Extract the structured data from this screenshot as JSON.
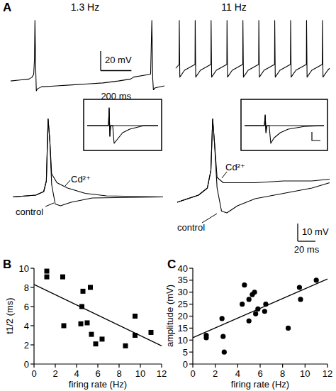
{
  "chart_data": [
    {
      "type": "line",
      "panel_label": "A",
      "title": "1.3 Hz",
      "tick_labels": false,
      "xlim": [
        0,
        1000
      ],
      "ylim": [
        -75,
        5
      ],
      "series": [
        {
          "color": "#000000",
          "x": [
            0,
            60,
            120,
            140,
            150,
            155,
            158,
            161,
            164,
            167,
            175,
            200,
            300,
            400,
            500,
            600,
            700,
            780,
            800,
            910,
            915,
            918,
            921,
            924,
            928,
            940,
            1000
          ],
          "values": [
            -62,
            -61,
            -60,
            -58,
            -55,
            -40,
            0,
            -30,
            -55,
            -72,
            -70,
            -68,
            -67,
            -66,
            -65,
            -64,
            -62,
            -60,
            -58,
            -55,
            -20,
            0,
            -30,
            -60,
            -71,
            -69,
            -67
          ]
        }
      ],
      "scale_bar": {
        "y_value": 20,
        "y_label": "20 mV",
        "x_value": 200,
        "x_label": "200 ms"
      }
    },
    {
      "type": "line",
      "title": "11 Hz",
      "tick_labels": false,
      "xlim": [
        0,
        880
      ],
      "ylim": [
        -75,
        5
      ],
      "series": [
        {
          "color": "#000000",
          "x": [
            0,
            19,
            20,
            23,
            50,
            90,
            110,
            111,
            114,
            141,
            181,
            201,
            202,
            205,
            232,
            272,
            292,
            293,
            296,
            323,
            363,
            383,
            384,
            387,
            414,
            454,
            474,
            475,
            478,
            505,
            545,
            565,
            566,
            569,
            596,
            636,
            656,
            657,
            660,
            687,
            727,
            747,
            748,
            751,
            778,
            818,
            838,
            839,
            842,
            869,
            880
          ],
          "values": [
            -49,
            -45,
            0,
            -58,
            -51,
            -47,
            -45,
            0,
            -58,
            -51,
            -47,
            -45,
            0,
            -58,
            -51,
            -47,
            -45,
            0,
            -58,
            -51,
            -47,
            -45,
            0,
            -58,
            -51,
            -47,
            -45,
            0,
            -58,
            -51,
            -47,
            -45,
            0,
            -58,
            -51,
            -47,
            -45,
            0,
            -58,
            -51,
            -47,
            -45,
            0,
            -58,
            -51,
            -47,
            -45,
            0,
            -58,
            -51,
            -49
          ]
        }
      ]
    },
    {
      "type": "line",
      "tick_labels": false,
      "xlim": [
        0,
        170
      ],
      "ylim": [
        -70,
        -10
      ],
      "series": [
        {
          "name": "control",
          "color": "#000000",
          "x": [
            0,
            26,
            35,
            38,
            40,
            42,
            44,
            48,
            54,
            66,
            90,
            170
          ],
          "values": [
            -57,
            -56,
            -54,
            -48,
            -13,
            -26,
            -50,
            -61,
            -62,
            -60,
            -57.6,
            -57
          ]
        },
        {
          "name": "Cd²⁺",
          "color": "#000000",
          "x": [
            0,
            26,
            35,
            38,
            40,
            42,
            44,
            50,
            62,
            82,
            106,
            170
          ],
          "values": [
            -57,
            -56,
            -54,
            -48,
            -13,
            -26,
            -44,
            -49,
            -52,
            -55,
            -56.4,
            -57
          ]
        }
      ]
    },
    {
      "type": "line",
      "tick_labels": false,
      "xlim": [
        0,
        172
      ],
      "ylim": [
        -70,
        -10
      ],
      "series": [
        {
          "name": "control",
          "color": "#000000",
          "x": [
            0,
            24,
            34,
            38,
            40,
            42,
            45,
            50,
            56,
            68,
            88,
            120,
            152,
            172
          ],
          "values": [
            -60,
            -56,
            -52,
            -42,
            -13,
            -26,
            -52,
            -65,
            -66,
            -62,
            -58,
            -55,
            -52,
            -49
          ]
        },
        {
          "name": "Cd²⁺",
          "color": "#000000",
          "x": [
            0,
            24,
            34,
            38,
            40,
            42,
            45,
            52,
            64,
            88,
            120,
            152,
            172
          ],
          "values": [
            -60,
            -56,
            -52,
            -42,
            -13,
            -26,
            -46,
            -49,
            -49,
            -49,
            -48,
            -48,
            -47
          ]
        }
      ],
      "scale_bar": {
        "y_value": 10,
        "y_label": "10 mV",
        "x_value": 20,
        "x_label": "20 ms"
      }
    },
    {
      "type": "line",
      "tick_labels": false,
      "xlim": [
        0,
        100
      ],
      "ylim": [
        -12,
        12
      ],
      "series": [
        {
          "color": "#000000",
          "x": [
            0,
            30,
            31,
            32,
            33,
            36,
            38,
            42,
            50,
            60,
            80,
            100
          ],
          "values": [
            0,
            0,
            10,
            -6,
            0,
            0,
            -10,
            -8,
            -4,
            -2,
            0,
            0
          ]
        },
        {
          "color": "#000000",
          "x": [
            0,
            30,
            31,
            32,
            33,
            100
          ],
          "values": [
            0,
            0,
            10,
            -6,
            0,
            0
          ]
        }
      ]
    },
    {
      "type": "line",
      "tick_labels": false,
      "xlim": [
        0,
        100
      ],
      "ylim": [
        -12,
        12
      ],
      "series": [
        {
          "color": "#000000",
          "x": [
            0,
            25,
            26,
            27,
            28,
            31,
            33,
            37,
            45,
            55,
            75,
            100
          ],
          "values": [
            0,
            0,
            6,
            -4,
            0,
            0,
            -10,
            -7,
            -4,
            -2,
            -0.5,
            0
          ]
        },
        {
          "color": "#000000",
          "x": [
            0,
            25,
            26,
            27,
            28,
            100
          ],
          "values": [
            0,
            0,
            6,
            -4,
            0,
            0
          ]
        }
      ]
    },
    {
      "type": "scatter",
      "panel_label": "B",
      "xlabel": "firing rate (Hz)",
      "ylabel": "t1/2 (ms)",
      "xlim": [
        0,
        12
      ],
      "ylim": [
        0,
        10
      ],
      "xticks": [
        0,
        2,
        4,
        6,
        8,
        10,
        12
      ],
      "yticks": [
        0,
        2,
        4,
        6,
        8,
        10
      ],
      "series": [
        {
          "color": "#000000",
          "marker": "square",
          "x": [
            1.2,
            1.2,
            2.7,
            2.8,
            4.4,
            4.5,
            4.6,
            5.0,
            5.3,
            5.4,
            5.8,
            6.4,
            8.6,
            9.5,
            9.5,
            11.0
          ],
          "values": [
            9.7,
            9.1,
            9.1,
            4.0,
            4.2,
            6.0,
            7.6,
            4.3,
            8.0,
            3.1,
            2.1,
            2.6,
            1.9,
            5.0,
            3.0,
            3.3
          ]
        },
        {
          "type": "line",
          "color": "#000000",
          "x": [
            0,
            12
          ],
          "values": [
            8.3,
            1.9
          ]
        }
      ]
    },
    {
      "type": "scatter",
      "panel_label": "C",
      "xlabel": "firing rate (Hz)",
      "ylabel": "amplitude (mV)",
      "xlim": [
        0,
        12
      ],
      "ylim": [
        0,
        40
      ],
      "xticks": [
        0,
        2,
        4,
        6,
        8,
        10,
        12
      ],
      "yticks": [
        0,
        5,
        10,
        15,
        20,
        25,
        30,
        35,
        40
      ],
      "series": [
        {
          "color": "#000000",
          "marker": "circle",
          "x": [
            1.2,
            1.2,
            2.6,
            2.7,
            2.8,
            4.4,
            4.6,
            5.0,
            5.0,
            5.3,
            5.5,
            5.6,
            5.8,
            6.4,
            6.5,
            8.5,
            9.5,
            9.6,
            11.0
          ],
          "values": [
            11,
            12,
            19,
            11.5,
            5,
            25,
            33,
            27,
            18,
            29,
            30,
            21,
            23,
            22,
            25,
            15,
            32,
            27,
            35
          ]
        },
        {
          "type": "line",
          "color": "#000000",
          "x": [
            0,
            12
          ],
          "values": [
            11,
            35.5
          ]
        }
      ]
    }
  ]
}
